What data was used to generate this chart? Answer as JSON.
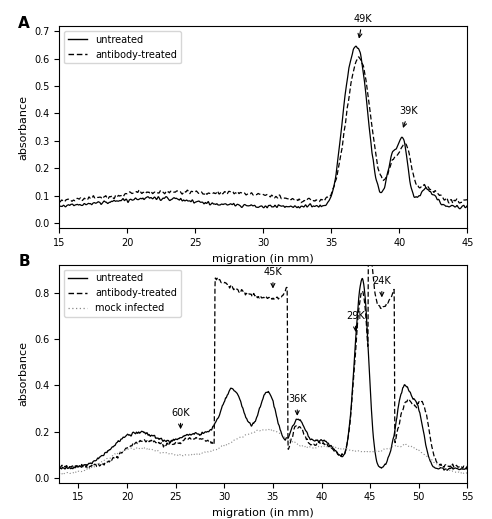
{
  "panel_A": {
    "xlim": [
      15,
      45
    ],
    "ylim_label": "absorbance",
    "xlabel": "migration (in mm)",
    "title": "A",
    "annotations": [
      {
        "x": 37.0,
        "label": "49K"
      },
      {
        "x": 40.2,
        "label": "39K"
      }
    ],
    "legend": [
      "untreated",
      "antibody-treated"
    ]
  },
  "panel_B": {
    "xlim": [
      13,
      55
    ],
    "ylim_label": "absorbance",
    "xlabel": "migration (in mm)",
    "title": "B",
    "annotations": [
      {
        "x": 25.5,
        "label": "60K"
      },
      {
        "x": 35.0,
        "label": "45K"
      },
      {
        "x": 37.5,
        "label": "36K"
      },
      {
        "x": 43.5,
        "label": "29K"
      },
      {
        "x": 46.2,
        "label": "24K"
      }
    ],
    "legend": [
      "untreated",
      "antibody-treated",
      "mock infected"
    ]
  },
  "fig_bg": "#ffffff",
  "line_color_solid": "#000000",
  "line_color_dashed": "#000000",
  "line_color_dotted": "#888888"
}
